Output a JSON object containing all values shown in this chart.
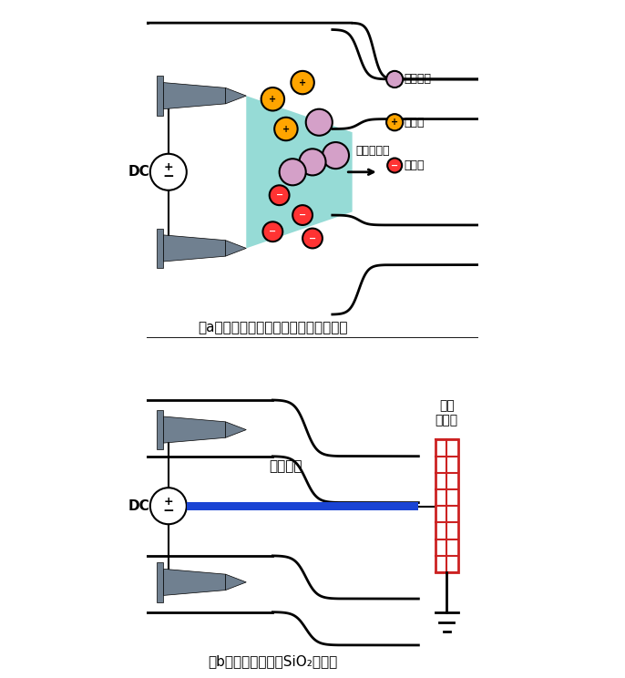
{
  "title_a": "（a）采用双极性针电极产生中性离子风",
  "title_b": "（b）在两针之间加SiO₂电介质",
  "bg_color": "#ffffff",
  "teal_color": "#5ec8c0",
  "needle_color": "#708090",
  "positive_fill": "#ffa500",
  "neutral_fill": "#d4a0c8",
  "negative_fill": "#ff3333",
  "blue_layer_color": "#1a44d4",
  "red_grid_color": "#cc2222",
  "label_wind": "离子风风向",
  "label_neutral": "中性粒子",
  "label_pos": "正离子",
  "label_neg": "负离子",
  "label_dielectric": "电介质层",
  "label_ground": "接地\n电极环"
}
